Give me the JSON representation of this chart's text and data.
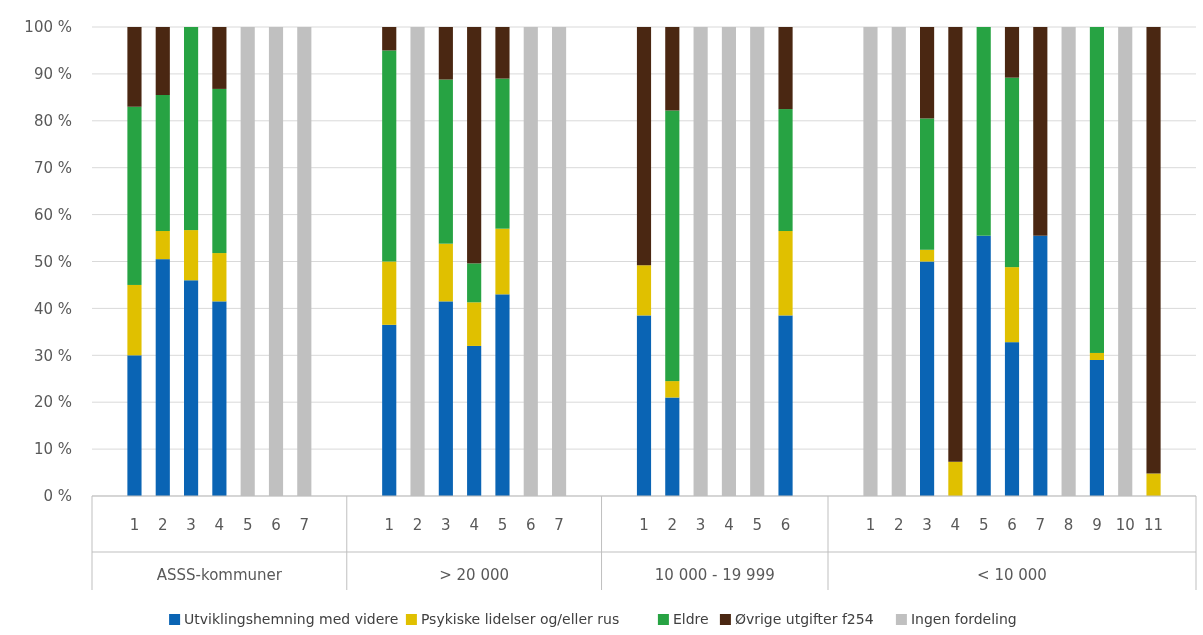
{
  "chart_data": {
    "type": "bar",
    "stacked": true,
    "categories": [
      null,
      "1",
      "2",
      "3",
      "4",
      "5",
      "6",
      "7",
      null,
      null,
      "1",
      "2",
      "3",
      "4",
      "5",
      "6",
      "7",
      null,
      null,
      "1",
      "2",
      "3",
      "4",
      "5",
      "6",
      null,
      null,
      "1",
      "2",
      "3",
      "4",
      "5",
      "6",
      "7",
      "8",
      "9",
      "10",
      "11",
      null
    ],
    "series": [
      {
        "name": "Utviklingshemning med videre",
        "color": "#0a64b4",
        "values": [
          null,
          30,
          50.5,
          46,
          41.5,
          0,
          0,
          0,
          null,
          null,
          36.5,
          0,
          41.5,
          32,
          43,
          0,
          0,
          null,
          null,
          38.5,
          21,
          0,
          0,
          0,
          38.5,
          null,
          null,
          0,
          0,
          50,
          0,
          55.5,
          32.8,
          55.5,
          0,
          29,
          0,
          0,
          null
        ]
      },
      {
        "name": "Psykiske lidelser og/eller rus",
        "color": "#e0c000",
        "values": [
          null,
          15,
          6,
          10.7,
          10.3,
          0,
          0,
          0,
          null,
          null,
          13.5,
          0,
          12.3,
          9.3,
          14,
          0,
          0,
          null,
          null,
          10.7,
          3.5,
          0,
          0,
          0,
          18,
          null,
          null,
          0,
          0,
          2.5,
          7.3,
          0,
          16,
          0,
          0,
          1.5,
          0,
          4.8,
          null
        ]
      },
      {
        "name": "Eldre",
        "color": "#27a343",
        "values": [
          null,
          38,
          29,
          43.3,
          35,
          0,
          0,
          0,
          null,
          null,
          45,
          0,
          35,
          8.3,
          32,
          0,
          0,
          null,
          null,
          0,
          57.7,
          0,
          0,
          0,
          26,
          null,
          null,
          0,
          0,
          28,
          0,
          44.5,
          40.4,
          0,
          0,
          69.5,
          0,
          0,
          null
        ]
      },
      {
        "name": "Øvrige utgifter f254",
        "color": "#4a2712",
        "values": [
          null,
          17,
          14.5,
          0,
          13.2,
          0,
          0,
          0,
          null,
          null,
          5,
          0,
          11.2,
          50.4,
          11,
          0,
          0,
          null,
          null,
          50.8,
          17.8,
          0,
          0,
          0,
          17.5,
          null,
          null,
          0,
          0,
          19.5,
          92.7,
          0,
          10.8,
          44.5,
          0,
          0,
          0,
          95.2,
          null
        ]
      },
      {
        "name": "Ingen fordeling",
        "color": "#c0c0c0",
        "values": [
          null,
          0,
          0,
          0,
          0,
          100,
          100,
          100,
          null,
          null,
          0,
          100,
          0,
          0,
          0,
          100,
          100,
          null,
          null,
          0,
          0,
          100,
          100,
          100,
          0,
          null,
          null,
          100,
          100,
          0,
          0,
          0,
          0,
          0,
          100,
          0,
          100,
          0,
          null
        ]
      }
    ],
    "ylim": [
      0,
      100
    ],
    "yticks": [
      {
        "value": 0,
        "label": "0 %"
      },
      {
        "value": 10,
        "label": "10 %"
      },
      {
        "value": 20,
        "label": "20 %"
      },
      {
        "value": 30,
        "label": "30 %"
      },
      {
        "value": 40,
        "label": "40 %"
      },
      {
        "value": 50,
        "label": "50 %"
      },
      {
        "value": 60,
        "label": "60 %"
      },
      {
        "value": 70,
        "label": "70 %"
      },
      {
        "value": 80,
        "label": "80 %"
      },
      {
        "value": 90,
        "label": "90 %"
      },
      {
        "value": 100,
        "label": "100 %"
      }
    ],
    "grid": "y",
    "legend": "bottom",
    "annotations": [
      "ASSS-kommuner",
      "> 20 000",
      "10 000 - 19 999",
      "< 10 000"
    ]
  }
}
